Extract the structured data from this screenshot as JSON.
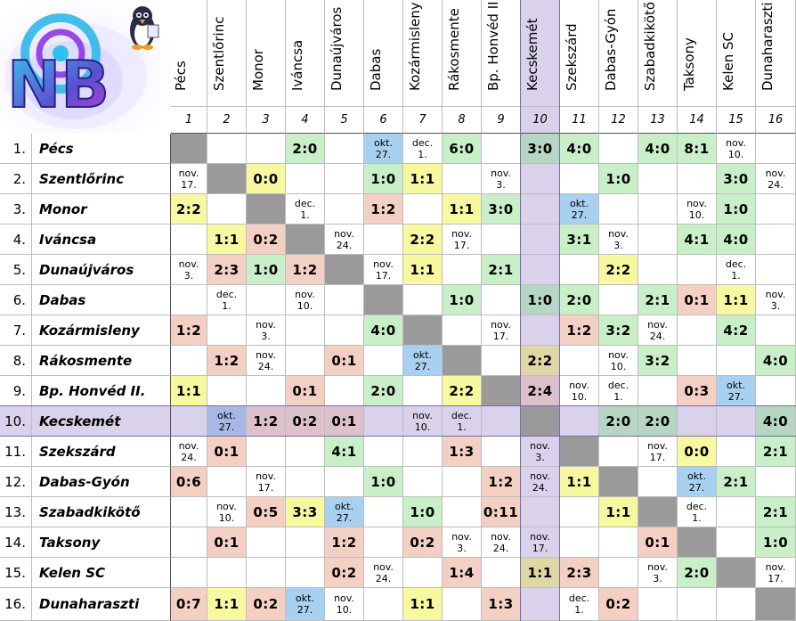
{
  "logo": {
    "text": "NB"
  },
  "colors": {
    "green": "#c8efc8",
    "yellow": "#f8f8a0",
    "red": "#f4d0c4",
    "blue": "#a8d0f0",
    "diag": "#9a9a9a",
    "highlight": "#d9d2ea",
    "hl_green": "#b4d6c2",
    "hl_yellow": "#e0d8a4",
    "hl_red": "#dcc0cc",
    "hl_blue": "#a8b8e4"
  },
  "teams": [
    "Pécs",
    "Szentlőrinc",
    "Monor",
    "Iváncsa",
    "Dunaújváros",
    "Dabas",
    "Kozármisleny",
    "Rákosmente",
    "Bp. Honvéd II.",
    "Kecskemét",
    "Szekszárd",
    "Dabas-Gyón",
    "Szabadkikötő",
    "Taksony",
    "Kelen SC",
    "Dunaharaszti"
  ],
  "numbers": [
    "1",
    "2",
    "3",
    "4",
    "5",
    "6",
    "7",
    "8",
    "9",
    "10",
    "11",
    "12",
    "13",
    "14",
    "15",
    "16"
  ],
  "row_numbers": [
    "1.",
    "2.",
    "3.",
    "4.",
    "5.",
    "6.",
    "7.",
    "8.",
    "9.",
    "10.",
    "11.",
    "12.",
    "13.",
    "14.",
    "15.",
    "16."
  ],
  "highlight_index": 9,
  "matrix": [
    [
      null,
      "",
      "",
      "2:0",
      "",
      "okt.\n27.",
      "dec.\n1.",
      "6:0",
      "",
      "3:0",
      "4:0",
      "",
      "4:0",
      "8:1",
      "nov.\n10.",
      ""
    ],
    [
      "nov.\n17.",
      null,
      "0:0",
      "",
      "",
      "1:0",
      "1:1",
      "",
      "nov.\n3.",
      "",
      "",
      "1:0",
      "",
      "",
      "3:0",
      "nov.\n24."
    ],
    [
      "2:2",
      "",
      null,
      "dec.\n1.",
      "",
      "1:2",
      "",
      "1:1",
      "3:0",
      "",
      "okt.\n27.",
      "",
      "",
      "nov.\n10.",
      "1:0",
      ""
    ],
    [
      "",
      "1:1",
      "0:2",
      null,
      "nov.\n24.",
      "",
      "2:2",
      "nov.\n17.",
      "",
      "",
      "3:1",
      "nov.\n3.",
      "",
      "4:1",
      "4:0",
      ""
    ],
    [
      "nov.\n3.",
      "2:3",
      "1:0",
      "1:2",
      null,
      "nov.\n17.",
      "1:1",
      "",
      "2:1",
      "",
      "",
      "2:2",
      "",
      "",
      "dec.\n1.",
      ""
    ],
    [
      "",
      "dec.\n1.",
      "",
      "nov.\n10.",
      "",
      null,
      "",
      "1:0",
      "",
      "1:0",
      "2:0",
      "",
      "2:1",
      "0:1",
      "1:1",
      "nov.\n3."
    ],
    [
      "1:2",
      "",
      "nov.\n3.",
      "",
      "",
      "4:0",
      null,
      "",
      "nov.\n17.",
      "",
      "1:2",
      "3:2",
      "nov.\n24.",
      "",
      "4:2",
      ""
    ],
    [
      "",
      "1:2",
      "nov.\n24.",
      "",
      "0:1",
      "",
      "okt.\n27.",
      null,
      "",
      "2:2",
      "",
      "nov.\n10.",
      "3:2",
      "",
      "",
      "4:0"
    ],
    [
      "1:1",
      "",
      "",
      "0:1",
      "",
      "2:0",
      "",
      "2:2",
      null,
      "2:4",
      "nov.\n10.",
      "dec.\n1.",
      "",
      "0:3",
      "okt.\n27.",
      ""
    ],
    [
      "",
      "okt.\n27.",
      "1:2",
      "0:2",
      "0:1",
      "",
      "nov.\n10.",
      "dec.\n1.",
      "",
      null,
      "",
      "2:0",
      "2:0",
      "",
      "",
      "4:0"
    ],
    [
      "nov.\n24.",
      "0:1",
      "",
      "",
      "4:1",
      "",
      "",
      "1:3",
      "",
      "nov.\n3.",
      null,
      "",
      "nov.\n17.",
      "0:0",
      "",
      "2:1"
    ],
    [
      "0:6",
      "",
      "nov.\n17.",
      "",
      "",
      "1:0",
      "",
      "",
      "1:2",
      "nov.\n24.",
      "1:1",
      null,
      "",
      "okt.\n27.",
      "2:1",
      ""
    ],
    [
      "",
      "nov.\n10.",
      "0:5",
      "3:3",
      "okt.\n27.",
      "",
      "1:0",
      "",
      "0:11",
      "",
      "",
      "1:1",
      null,
      "dec.\n1.",
      "",
      "2:1"
    ],
    [
      "",
      "0:1",
      "",
      "",
      "1:2",
      "",
      "0:2",
      "nov.\n3.",
      "nov.\n24.",
      "nov.\n17.",
      "",
      "",
      "0:1",
      null,
      "",
      "1:0"
    ],
    [
      "",
      "",
      "",
      "",
      "0:2",
      "nov.\n24.",
      "",
      "1:4",
      "",
      "1:1",
      "2:3",
      "",
      "nov.\n3.",
      "2:0",
      null,
      "nov.\n17."
    ],
    [
      "0:7",
      "1:1",
      "0:2",
      "okt.\n27.",
      "nov.\n10.",
      "",
      "1:1",
      "",
      "1:3",
      "",
      "dec.\n1.",
      "0:2",
      "",
      "",
      "",
      null
    ]
  ]
}
